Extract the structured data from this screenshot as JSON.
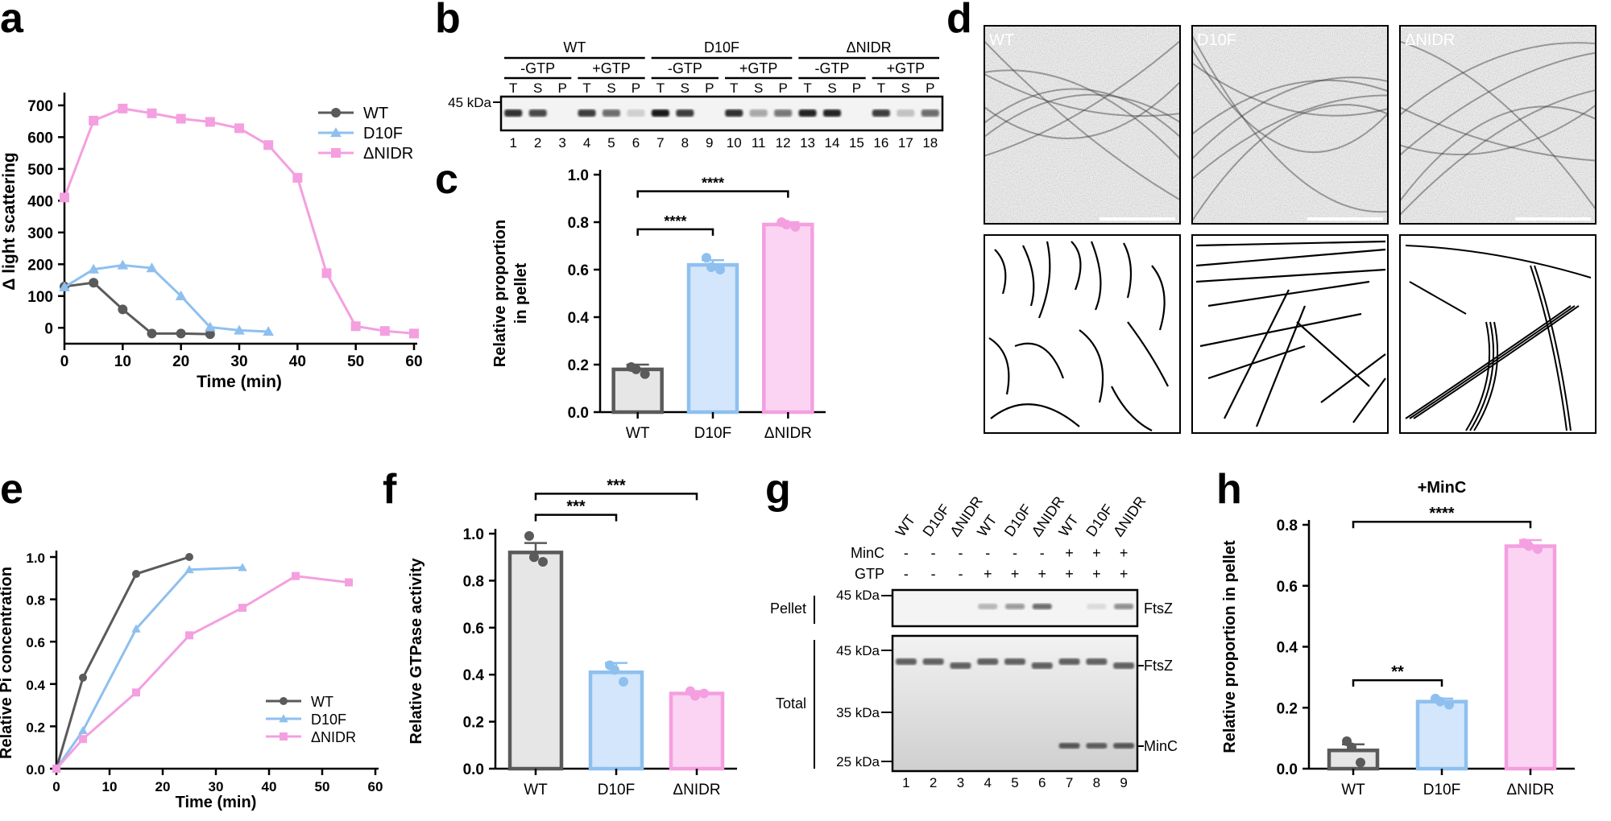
{
  "panel_letters": {
    "a": "a",
    "b": "b",
    "c": "c",
    "d": "d",
    "e": "e",
    "f": "f",
    "g": "g",
    "h": "h"
  },
  "colors": {
    "wt": "#5a5a5a",
    "d10f": "#8ec0ef",
    "nidr": "#f49fe0",
    "wt_fill": "#e6e6e6",
    "d10f_fill": "#d4e6fb",
    "nidr_fill": "#fbd4f3"
  },
  "chart_data": [
    {
      "id": "a",
      "type": "line",
      "xlabel": "Time (min)",
      "ylabel": "Δ light scattering",
      "xlim": [
        0,
        60
      ],
      "ylim": [
        -50,
        720
      ],
      "xticks": [
        "0",
        "10",
        "20",
        "30",
        "40",
        "50",
        "60"
      ],
      "yticks": [
        "0",
        "100",
        "200",
        "300",
        "400",
        "500",
        "600",
        "700"
      ],
      "legend_placement": "top-right",
      "series": [
        {
          "name": "WT",
          "marker": "circle",
          "x": [
            0,
            5,
            10,
            15,
            20,
            25
          ],
          "y": [
            130,
            142,
            58,
            -18,
            -18,
            -20
          ]
        },
        {
          "name": "D10F",
          "marker": "triangle",
          "x": [
            0,
            5,
            10,
            15,
            20,
            25,
            30,
            35
          ],
          "y": [
            128,
            184,
            197,
            188,
            100,
            2,
            -8,
            -12
          ]
        },
        {
          "name": "ΔNIDR",
          "marker": "square",
          "x": [
            0,
            5,
            10,
            15,
            20,
            25,
            30,
            35,
            40,
            45,
            50,
            55,
            60
          ],
          "y": [
            410,
            652,
            690,
            675,
            658,
            648,
            628,
            575,
            472,
            172,
            5,
            -10,
            -18
          ]
        }
      ]
    },
    {
      "id": "c",
      "type": "bar",
      "ylabel_lines": [
        "Relative proportion",
        "in pellet"
      ],
      "ylim": [
        0,
        1.0
      ],
      "yticks": [
        "0.0",
        "0.2",
        "0.4",
        "0.6",
        "0.8",
        "1.0"
      ],
      "categories": [
        "WT",
        "D10F",
        "ΔNIDR"
      ],
      "values": [
        0.18,
        0.62,
        0.79
      ],
      "errors": [
        0.02,
        0.02,
        0.01
      ],
      "points": [
        [
          0.19,
          0.16,
          0.18
        ],
        [
          0.65,
          0.6,
          0.61
        ],
        [
          0.8,
          0.78,
          0.79
        ]
      ],
      "sig": [
        {
          "from": 0,
          "to": 1,
          "label": "****",
          "y": 0.77
        },
        {
          "from": 0,
          "to": 2,
          "label": "****",
          "y": 0.93
        }
      ]
    },
    {
      "id": "e",
      "type": "line",
      "xlabel": "Time (min)",
      "ylabel": "Relative Pi concentration",
      "xlim": [
        0,
        60
      ],
      "ylim": [
        0,
        1.0
      ],
      "xticks": [
        "0",
        "10",
        "20",
        "30",
        "40",
        "50",
        "60"
      ],
      "yticks": [
        "0.0",
        "0.2",
        "0.4",
        "0.6",
        "0.8",
        "1.0"
      ],
      "legend_placement": "bottom-right",
      "series": [
        {
          "name": "WT",
          "marker": "circle",
          "x": [
            0,
            5,
            15,
            25
          ],
          "y": [
            0,
            0.43,
            0.92,
            1.0
          ]
        },
        {
          "name": "D10F",
          "marker": "triangle",
          "x": [
            0,
            5,
            15,
            25,
            35
          ],
          "y": [
            0,
            0.18,
            0.66,
            0.94,
            0.95
          ]
        },
        {
          "name": "ΔNIDR",
          "marker": "square",
          "x": [
            0,
            5,
            15,
            25,
            35,
            45,
            55
          ],
          "y": [
            0,
            0.14,
            0.36,
            0.63,
            0.76,
            0.91,
            0.88
          ]
        }
      ]
    },
    {
      "id": "f",
      "type": "bar",
      "ylabel": "Relative GTPase activity",
      "ylim": [
        0,
        1.0
      ],
      "yticks": [
        "0.0",
        "0.2",
        "0.4",
        "0.6",
        "0.8",
        "1.0"
      ],
      "categories": [
        "WT",
        "D10F",
        "ΔNIDR"
      ],
      "values": [
        0.92,
        0.41,
        0.32
      ],
      "errors": [
        0.04,
        0.04,
        0.01
      ],
      "points": [
        [
          0.99,
          0.88,
          0.9
        ],
        [
          0.44,
          0.37,
          0.42
        ],
        [
          0.33,
          0.32,
          0.31
        ]
      ],
      "sig": [
        {
          "from": 0,
          "to": 1,
          "label": "***",
          "y": 1.08
        },
        {
          "from": 0,
          "to": 2,
          "label": "***",
          "y": 1.17
        }
      ]
    },
    {
      "id": "h",
      "type": "bar",
      "ylabel": "Relative proportion in pellet",
      "top_label": "+MinC",
      "ylim": [
        0,
        0.8
      ],
      "yticks": [
        "0.0",
        "0.2",
        "0.4",
        "0.6",
        "0.8"
      ],
      "categories": [
        "WT",
        "D10F",
        "ΔNIDR"
      ],
      "values": [
        0.06,
        0.22,
        0.73
      ],
      "errors": [
        0.02,
        0.01,
        0.02
      ],
      "points": [
        [
          0.09,
          0.02,
          0.07
        ],
        [
          0.23,
          0.21,
          0.22
        ],
        [
          0.74,
          0.72,
          0.73
        ]
      ],
      "sig": [
        {
          "from": 0,
          "to": 1,
          "label": "**",
          "y": 0.29
        },
        {
          "from": 0,
          "to": 2,
          "label": "****",
          "y": 0.81
        }
      ]
    }
  ],
  "gel_b": {
    "marker": "45 kDa",
    "groups": [
      "WT",
      "D10F",
      "ΔNIDR"
    ],
    "conditions": [
      "-GTP",
      "+GTP",
      "-GTP",
      "+GTP",
      "-GTP",
      "+GTP"
    ],
    "fractions": [
      "T",
      "S",
      "P",
      "T",
      "S",
      "P",
      "T",
      "S",
      "P",
      "T",
      "S",
      "P",
      "T",
      "S",
      "P",
      "T",
      "S",
      "P"
    ],
    "lanes": [
      "1",
      "2",
      "3",
      "4",
      "5",
      "6",
      "7",
      "8",
      "9",
      "10",
      "11",
      "12",
      "13",
      "14",
      "15",
      "16",
      "17",
      "18"
    ],
    "intensity": [
      0.85,
      0.75,
      0.0,
      0.8,
      0.6,
      0.15,
      0.95,
      0.8,
      0.0,
      0.85,
      0.35,
      0.55,
      0.9,
      0.9,
      0.0,
      0.8,
      0.2,
      0.6
    ]
  },
  "micro_d": {
    "labels": [
      "WT",
      "D10F",
      "ΔNIDR"
    ]
  },
  "gel_g": {
    "lane_labels": [
      "WT",
      "D10F",
      "ΔNIDR",
      "WT",
      "D10F",
      "ΔNIDR",
      "WT",
      "D10F",
      "ΔNIDR"
    ],
    "minc_label": "MinC",
    "gtp_label": "GTP",
    "minc_row": [
      "-",
      "-",
      "-",
      "-",
      "-",
      "-",
      "+",
      "+",
      "+"
    ],
    "gtp_row": [
      "-",
      "-",
      "-",
      "+",
      "+",
      "+",
      "+",
      "+",
      "+"
    ],
    "pellet_label": "Pellet",
    "total_label": "Total",
    "pellet_marker": "45 kDa",
    "total_markers": [
      "45 kDa",
      "35 kDa",
      "25 kDa"
    ],
    "right_labels": {
      "pellet": "FtsZ",
      "total_ftsz": "FtsZ",
      "total_minc": "MinC"
    },
    "lanes": [
      "1",
      "2",
      "3",
      "4",
      "5",
      "6",
      "7",
      "8",
      "9"
    ],
    "pellet_intensity": [
      0.0,
      0.0,
      0.0,
      0.25,
      0.4,
      0.6,
      0.0,
      0.1,
      0.45
    ],
    "minc_intensity": [
      0,
      0,
      0,
      0,
      0,
      0,
      0.8,
      0.75,
      0.8
    ]
  }
}
